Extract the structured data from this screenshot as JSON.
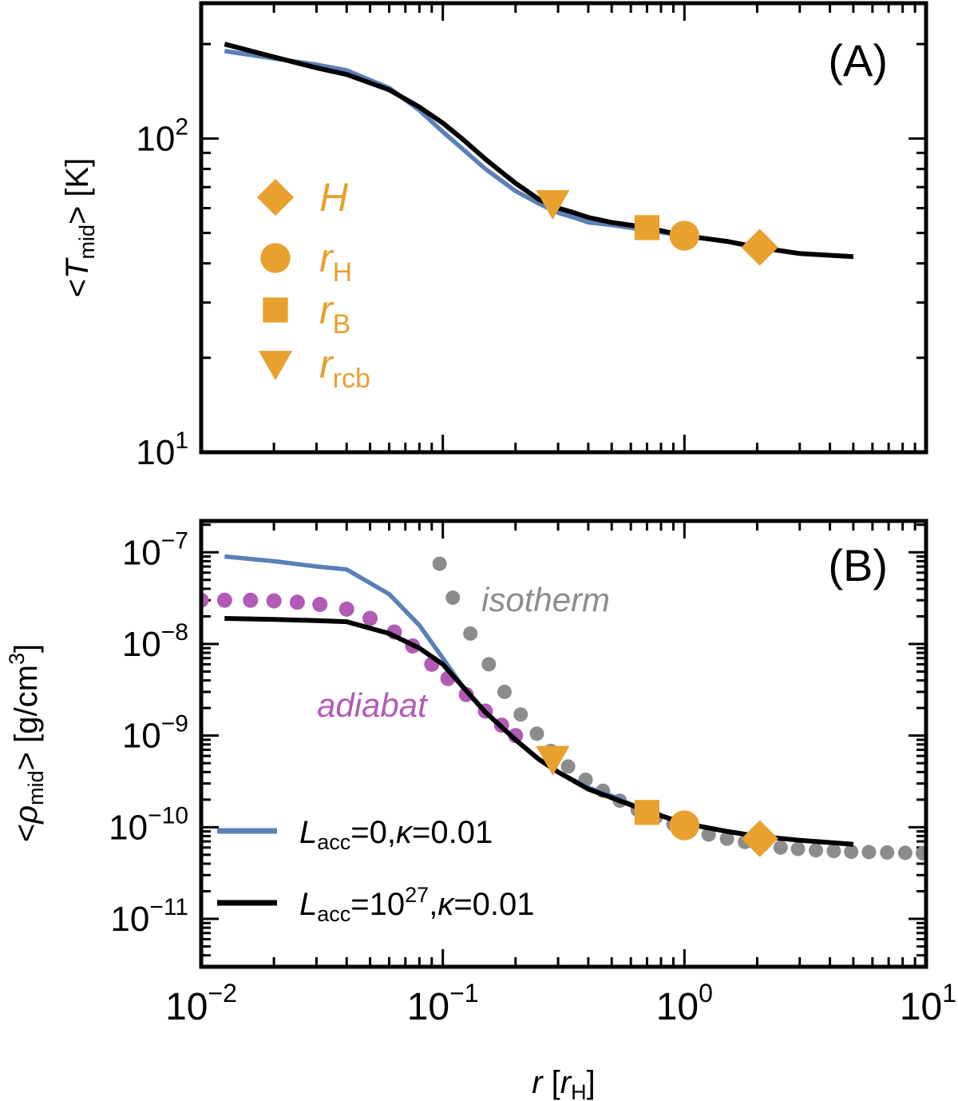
{
  "figure": {
    "x_label": {
      "var": "r",
      "open": " [",
      "unit": "r",
      "unit_sub": "H",
      "close": "]"
    },
    "x_ticks": [
      {
        "value": 0.01,
        "base": "10",
        "exp": "−2"
      },
      {
        "value": 0.1,
        "base": "10",
        "exp": "−1"
      },
      {
        "value": 1,
        "base": "10",
        "exp": "0"
      },
      {
        "value": 10,
        "base": "10",
        "exp": "1"
      }
    ]
  },
  "chart_data": [
    {
      "type": "line",
      "panel_label": "(A)",
      "xscale": "log",
      "yscale": "log",
      "xlim": [
        0.01,
        10
      ],
      "ylim": [
        10,
        270
      ],
      "ylabel": {
        "open": "<",
        "var": "T",
        "sub": "mid",
        "close": "> [K]"
      },
      "y_ticks": [
        {
          "value": 10,
          "base": "10",
          "exp": "1"
        },
        {
          "value": 100,
          "base": "10",
          "exp": "2"
        }
      ],
      "series": [
        {
          "id": "lacc0",
          "color": "#5b80b8",
          "x": [
            0.0125,
            0.02,
            0.03,
            0.04,
            0.06,
            0.08,
            0.1,
            0.12,
            0.15,
            0.2,
            0.25,
            0.3,
            0.35,
            0.4,
            0.5,
            0.7,
            1.0,
            1.5,
            2.0,
            3.0,
            5.0
          ],
          "y": [
            190,
            180,
            172,
            165,
            145,
            123,
            105,
            93,
            80,
            68,
            62,
            58,
            56,
            54,
            53,
            51,
            49,
            47,
            45,
            43,
            42
          ]
        },
        {
          "id": "lacc27",
          "color": "#000000",
          "x": [
            0.0125,
            0.02,
            0.03,
            0.04,
            0.06,
            0.08,
            0.1,
            0.12,
            0.15,
            0.2,
            0.25,
            0.3,
            0.35,
            0.4,
            0.5,
            0.7,
            1.0,
            1.5,
            2.0,
            3.0,
            5.0
          ],
          "y": [
            200,
            182,
            168,
            160,
            143,
            126,
            112,
            100,
            86,
            72,
            64,
            60,
            58,
            56,
            54,
            52,
            49,
            47,
            45,
            43,
            42
          ]
        }
      ],
      "markers": [
        {
          "shape": "diamond",
          "x": 2.05,
          "y": 45,
          "label": "H",
          "sub": ""
        },
        {
          "shape": "circle",
          "x": 1.0,
          "y": 49,
          "label": "r",
          "sub": "H"
        },
        {
          "shape": "square",
          "x": 0.7,
          "y": 52,
          "label": "r",
          "sub": "B"
        },
        {
          "shape": "triangle",
          "x": 0.285,
          "y": 62,
          "label": "r",
          "sub": "rcb"
        }
      ],
      "marker_color": "#e8a02e",
      "legend_position": "left"
    },
    {
      "type": "line",
      "panel_label": "(B)",
      "xscale": "log",
      "yscale": "log",
      "xlim": [
        0.01,
        10
      ],
      "ylim": [
        3e-12,
        2.2e-07
      ],
      "ylabel": {
        "open": "<",
        "var": "ρ",
        "sub": "mid",
        "close": "> [g/cm",
        "sup": "3",
        "end": "]"
      },
      "y_ticks": [
        {
          "value": 1e-07,
          "base": "10",
          "exp": "−7"
        },
        {
          "value": 1e-08,
          "base": "10",
          "exp": "−8"
        },
        {
          "value": 1e-09,
          "base": "10",
          "exp": "−9"
        },
        {
          "value": 1e-10,
          "base": "10",
          "exp": "−10"
        },
        {
          "value": 1e-11,
          "base": "10",
          "exp": "−11"
        }
      ],
      "series": [
        {
          "id": "lacc0",
          "color": "#5b80b8",
          "legend": {
            "var": "L",
            "sub": "acc",
            "text": "=0,",
            "kappa": "κ",
            "tail": "=0.01"
          },
          "x": [
            0.0125,
            0.02,
            0.03,
            0.04,
            0.06,
            0.08,
            0.1,
            0.12,
            0.15,
            0.2,
            0.25,
            0.3,
            0.4,
            0.5,
            0.7,
            1.0,
            1.5,
            2.0,
            3.0,
            5.0
          ],
          "y": [
            9e-08,
            8e-08,
            7e-08,
            6.5e-08,
            3.5e-08,
            1.6e-08,
            7e-09,
            3.5e-09,
            1.8e-09,
            9e-10,
            5.5e-10,
            4e-10,
            2.7e-10,
            2.2e-10,
            1.5e-10,
            1.1e-10,
            9e-11,
            8e-11,
            7.2e-11,
            6.5e-11
          ]
        },
        {
          "id": "lacc27",
          "color": "#000000",
          "legend": {
            "var": "L",
            "sub": "acc",
            "text": "=10",
            "sup": "27",
            "text2": ",",
            "kappa": "κ",
            "tail": "=0.01"
          },
          "x": [
            0.0125,
            0.02,
            0.03,
            0.04,
            0.06,
            0.08,
            0.1,
            0.12,
            0.15,
            0.2,
            0.25,
            0.3,
            0.4,
            0.5,
            0.7,
            1.0,
            1.5,
            2.0,
            3.0,
            5.0
          ],
          "y": [
            1.9e-08,
            1.85e-08,
            1.8e-08,
            1.75e-08,
            1.3e-08,
            9e-09,
            6e-09,
            3.5e-09,
            1.8e-09,
            9e-10,
            5.5e-10,
            4e-10,
            2.6e-10,
            2.1e-10,
            1.5e-10,
            1.1e-10,
            9e-11,
            8e-11,
            7.2e-11,
            6.5e-11
          ]
        }
      ],
      "isotherm": {
        "label": "isotherm",
        "color": "#8c8c8c",
        "x": [
          0.097,
          0.11,
          0.13,
          0.155,
          0.18,
          0.21,
          0.245,
          0.28,
          0.33,
          0.39,
          0.46,
          0.54,
          0.64,
          0.76,
          0.9,
          1.06,
          1.26,
          1.5,
          1.78,
          2.1,
          2.5,
          2.95,
          3.5,
          4.15,
          4.9,
          5.8,
          6.9,
          8.2,
          9.7
        ],
        "y": [
          7.5e-08,
          3.2e-08,
          1.3e-08,
          6e-09,
          3e-09,
          1.7e-09,
          1.05e-09,
          6.8e-10,
          4.6e-10,
          3.3e-10,
          2.5e-10,
          1.95e-10,
          1.55e-10,
          1.28e-10,
          1.08e-10,
          9.3e-11,
          8.3e-11,
          7.5e-11,
          6.9e-11,
          6.4e-11,
          6e-11,
          5.8e-11,
          5.6e-11,
          5.5e-11,
          5.4e-11,
          5.35e-11,
          5.3e-11,
          5.25e-11,
          5.2e-11
        ]
      },
      "adiabat": {
        "label": "adiabat",
        "color": "#b15bb5",
        "x": [
          0.01,
          0.0125,
          0.016,
          0.02,
          0.025,
          0.031,
          0.04,
          0.05,
          0.063,
          0.075,
          0.09,
          0.105,
          0.125,
          0.15,
          0.175,
          0.2
        ],
        "y": [
          3e-08,
          3e-08,
          3e-08,
          2.95e-08,
          2.85e-08,
          2.7e-08,
          2.4e-08,
          1.9e-08,
          1.35e-08,
          9.5e-09,
          6e-09,
          4.2e-09,
          2.8e-09,
          1.85e-09,
          1.3e-09,
          1e-09
        ]
      },
      "markers": [
        {
          "shape": "diamond",
          "x": 2.05,
          "y": 7.5e-11
        },
        {
          "shape": "circle",
          "x": 1.0,
          "y": 1.05e-10
        },
        {
          "shape": "square",
          "x": 0.7,
          "y": 1.45e-10
        },
        {
          "shape": "triangle",
          "x": 0.285,
          "y": 5.5e-10
        }
      ],
      "marker_color": "#e8a02e",
      "legend_position": "bottom-left"
    }
  ]
}
